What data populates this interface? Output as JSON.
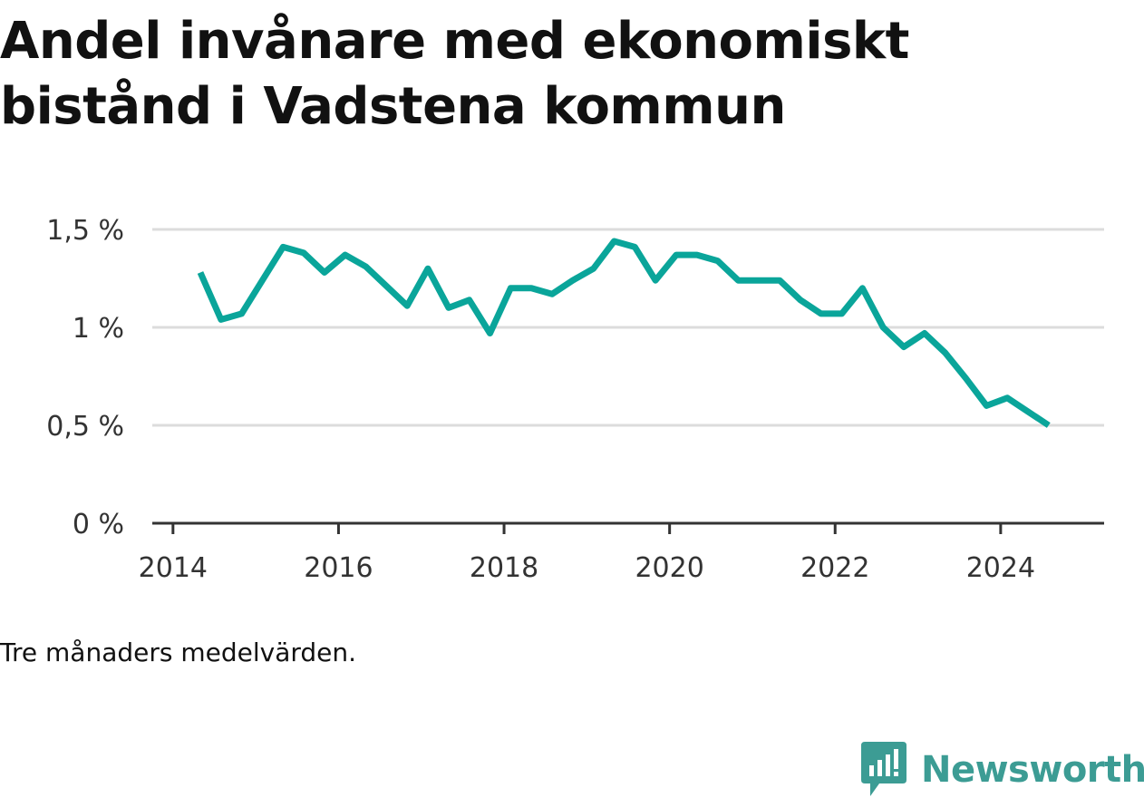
{
  "title": "Andel invånare med ekonomiskt bistånd i Vadstena kommun",
  "note": "Tre månaders medelvärden.",
  "brand": {
    "name": "Newsworthy",
    "icon": "newsworthy-logo-icon",
    "color": "#3c9c94"
  },
  "colors": {
    "line": "#0aa59a",
    "grid": "#dcdcdc",
    "axis": "#333333"
  },
  "chart_data": {
    "type": "line",
    "title": "Andel invånare med ekonomiskt bistånd i Vadstena kommun",
    "xlabel": "",
    "ylabel": "",
    "xlim": [
      2013.75,
      2025.25
    ],
    "ylim": [
      0,
      1.5
    ],
    "grid": true,
    "legend": "none",
    "x_ticks": [
      2014,
      2016,
      2018,
      2020,
      2022,
      2024
    ],
    "x_tick_labels": [
      "2014",
      "2016",
      "2018",
      "2020",
      "2022",
      "2024"
    ],
    "y_ticks": [
      0,
      0.5,
      1,
      1.5
    ],
    "y_tick_labels": [
      "0 %",
      "0,5 %",
      "1 %",
      "1,5 %"
    ],
    "series": [
      {
        "x": [
          2014.33,
          2014.58,
          2014.83,
          2015.08,
          2015.33,
          2015.58,
          2015.83,
          2016.08,
          2016.33,
          2016.58,
          2016.83,
          2017.08,
          2017.33,
          2017.58,
          2017.83,
          2018.08,
          2018.33,
          2018.58,
          2018.83,
          2019.08,
          2019.33,
          2019.58,
          2019.83,
          2020.08,
          2020.33,
          2020.58,
          2020.83,
          2021.08,
          2021.33,
          2021.58,
          2021.83,
          2022.08,
          2022.33,
          2022.58,
          2022.83,
          2023.08,
          2023.33,
          2023.58,
          2023.83,
          2024.08,
          2024.33,
          2024.58
        ],
        "values": [
          1.28,
          1.04,
          1.07,
          1.24,
          1.41,
          1.38,
          1.28,
          1.37,
          1.31,
          1.21,
          1.11,
          1.3,
          1.1,
          1.14,
          0.97,
          1.2,
          1.2,
          1.17,
          1.24,
          1.3,
          1.44,
          1.41,
          1.24,
          1.37,
          1.37,
          1.34,
          1.24,
          1.24,
          1.24,
          1.14,
          1.07,
          1.07,
          1.2,
          1.0,
          0.9,
          0.97,
          0.87,
          0.74,
          0.6,
          0.64,
          0.57,
          0.5
        ]
      }
    ]
  }
}
